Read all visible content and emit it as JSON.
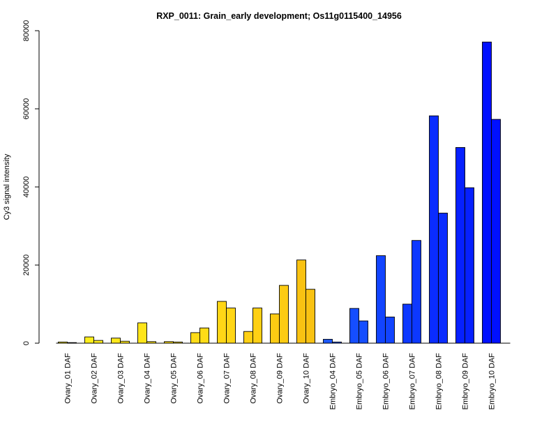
{
  "chart_data": {
    "type": "bar",
    "title": "RXP_0011: Grain_early development; Os11g0115400_14956",
    "xlabel": "",
    "ylabel": "Cy3 signal intensity",
    "ylim": [
      0,
      80000
    ],
    "yticks": [
      0,
      20000,
      40000,
      60000,
      80000
    ],
    "ytick_labels": [
      "0",
      "20000",
      "40000",
      "60000",
      "80000"
    ],
    "grid": false,
    "legend": "none",
    "categories": [
      "Ovary_01 DAF",
      "Ovary_02 DAF",
      "Ovary_03 DAF",
      "Ovary_04 DAF",
      "Ovary_05 DAF",
      "Ovary_06 DAF",
      "Ovary_07 DAF",
      "Ovary_08 DAF",
      "Ovary_09 DAF",
      "Ovary_10 DAF",
      "Embryo_04 DAF",
      "Embryo_05 DAF",
      "Embryo_06 DAF",
      "Embryo_07 DAF",
      "Embryo_08 DAF",
      "Embryo_09 DAF",
      "Embryo_10 DAF"
    ],
    "series": [
      {
        "values": [
          300,
          1600,
          1300,
          5200,
          400,
          2700,
          10700,
          3000,
          7500,
          21300,
          1000,
          8900,
          22400,
          10000,
          58200,
          50100,
          77100
        ]
      },
      {
        "values": [
          150,
          700,
          500,
          400,
          300,
          3900,
          9000,
          9000,
          14800,
          13800,
          300,
          5700,
          6700,
          26300,
          33300,
          39800,
          57300
        ]
      }
    ],
    "bar_colors": [
      "#FFF01E",
      "#FFEE1C",
      "#FFE81B",
      "#FFE519",
      "#FFE018",
      "#FFDC17",
      "#FFD616",
      "#FFD014",
      "#FCCB13",
      "#F9C212",
      "#1C58FF",
      "#154EFF",
      "#1244FF",
      "#0D38FF",
      "#0A2CFF",
      "#0620FF",
      "#0010FF"
    ]
  }
}
